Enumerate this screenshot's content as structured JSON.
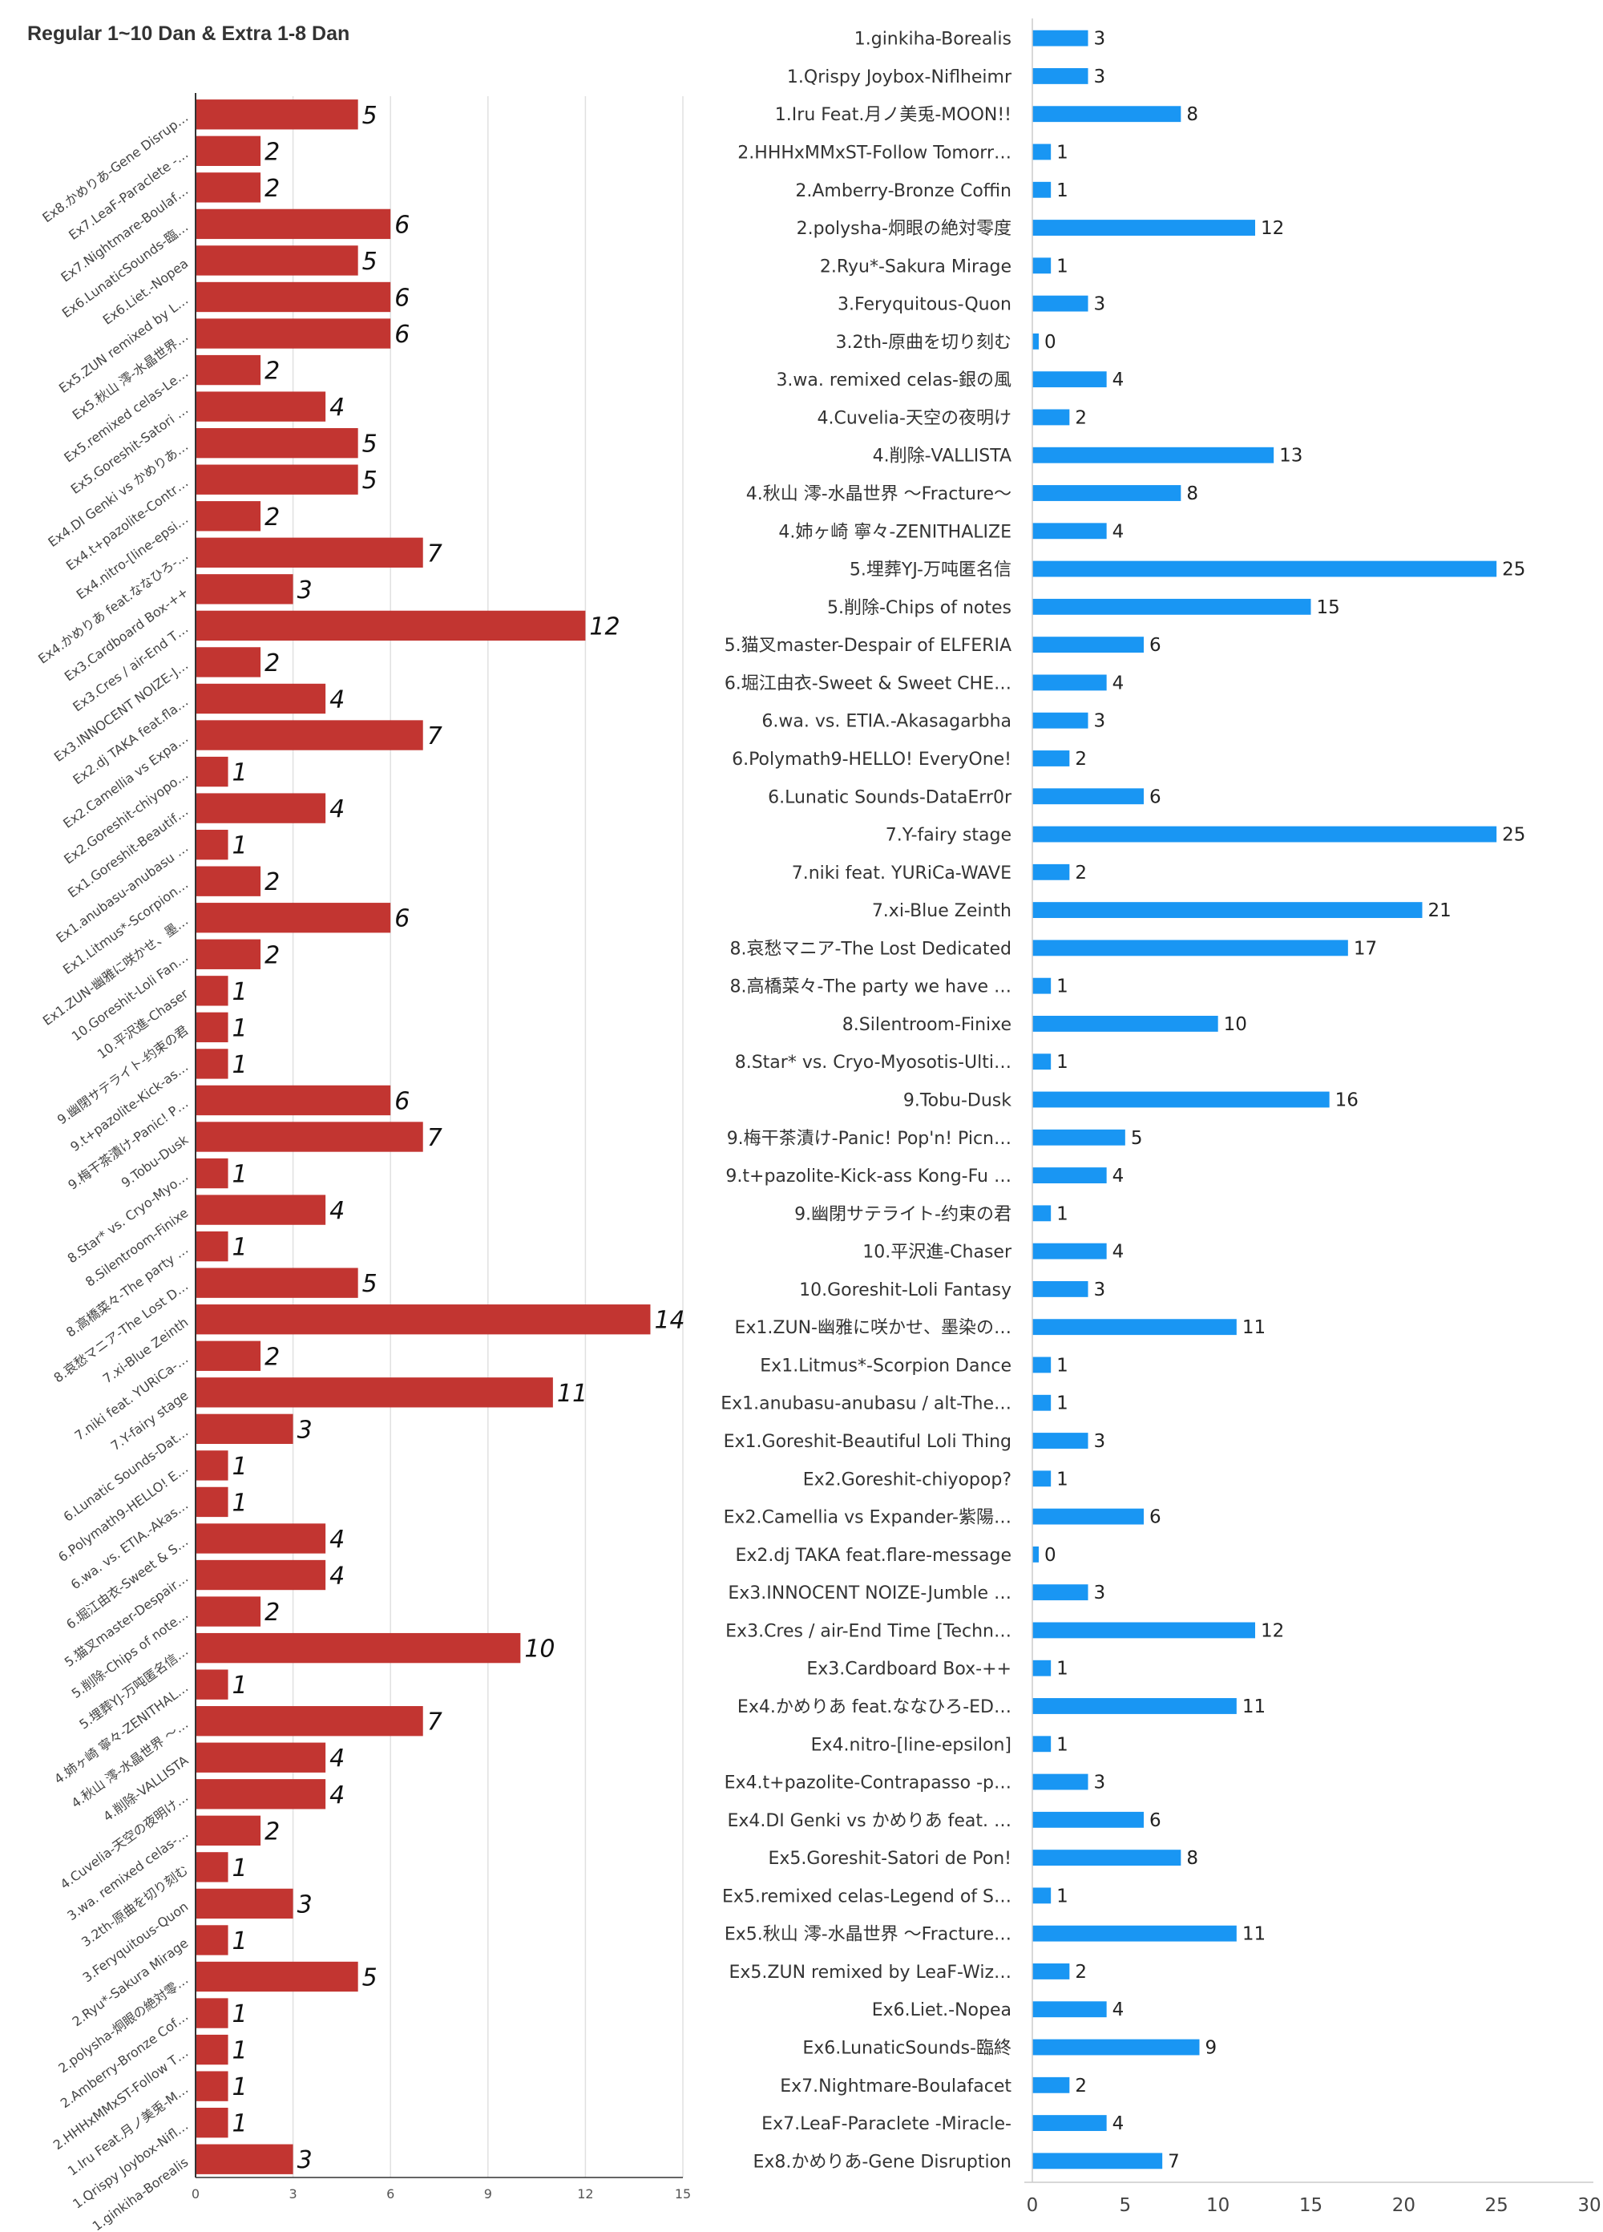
{
  "title": "Regular 1~10 Dan & Extra 1-8 Dan",
  "colors": {
    "left_bar": "#C23531",
    "right_bar": "#1996F3",
    "grid": "#E0E0E0",
    "axis": "#333333"
  },
  "chart_data": [
    {
      "type": "bar",
      "orientation": "horizontal",
      "position": "left",
      "xlim": [
        0,
        15
      ],
      "ticks": [
        0,
        3,
        6,
        9,
        12,
        15
      ],
      "grid": true,
      "categories": [
        "Ex8.かめりあ-Gene Disrup…",
        "Ex7.LeaF-Paraclete -…",
        "Ex7.Nightmare-Boulaf…",
        "Ex6.LunaticSounds-臨…",
        "Ex6.Liet.-Nopea",
        "Ex5.ZUN remixed by L…",
        "Ex5.秋山 澪-水晶世界…",
        "Ex5.remixed celas-Le…",
        "Ex5.Goreshit-Satori …",
        "Ex4.DI Genki vs かめりあ…",
        "Ex4.t+pazolite-Contr…",
        "Ex4.nitro-[line-epsi…",
        "Ex4.かめりあ feat.ななひろ-…",
        "Ex3.Cardboard Box-++",
        "Ex3.Cres / air-End T…",
        "Ex3.INNOCENT NOIZE-J…",
        "Ex2.dj TAKA feat.fla…",
        "Ex2.Camellia vs Expa…",
        "Ex2.Goreshit-chiyopo…",
        "Ex1.Goreshit-Beautif…",
        "Ex1.anubasu-anubasu …",
        "Ex1.Litmus*-Scorpion…",
        "Ex1.ZUN-幽雅に咲かせ、墨…",
        "10.Goreshit-Loli Fan…",
        "10.平沢進-Chaser",
        "9.幽閉サテライト-约束の君",
        "9.t+pazolite-Kick-as…",
        "9.梅干茶漬け-Panic! P…",
        "9.Tobu-Dusk",
        "8.Star* vs. Cryo-Myo…",
        "8.Silentroom-Finixe",
        "8.高橋菜々-The party …",
        "8.哀愁マニア-The Lost D…",
        "7.xi-Blue Zeinth",
        "7.niki feat. YURiCa-…",
        "7.Y-fairy stage",
        "6.Lunatic Sounds-Dat…",
        "6.Polymath9-HELLO! E…",
        "6.wa. vs. ETIA.-Akas…",
        "6.堀江由衣-Sweet & S…",
        "5.猫叉master-Despair…",
        "5.削除-Chips of note…",
        "5.埋葬YJ-万吨匿名信…",
        "4.姉ヶ崎 寧々-ZENITHAL…",
        "4.秋山 澪-水晶世界 ～…",
        "4.削除-VALLISTA",
        "4.Cuvelia-天空の夜明け…",
        "3.wa. remixed celas-…",
        "3.2th-原曲を切り刻む",
        "3.Feryquitous-Quon",
        "2.Ryu*-Sakura Mirage",
        "2.polysha-炯眼の絶対零…",
        "2.Amberry-Bronze Cof…",
        "2.HHHxMMxST-Follow T…",
        "1.Iru Feat.月ノ美兎-M…",
        "1.Qrispy Joybox-Nifl…",
        "1.ginkiha-Borealis"
      ],
      "values": [
        5,
        2,
        2,
        6,
        5,
        6,
        6,
        2,
        4,
        5,
        5,
        2,
        7,
        3,
        12,
        2,
        4,
        7,
        1,
        4,
        1,
        2,
        6,
        2,
        1,
        1,
        1,
        6,
        7,
        1,
        4,
        1,
        5,
        14,
        2,
        11,
        3,
        1,
        1,
        4,
        4,
        2,
        10,
        1,
        7,
        4,
        4,
        2,
        1,
        3,
        1,
        5,
        1,
        1,
        1,
        1,
        3
      ]
    },
    {
      "type": "bar",
      "orientation": "horizontal",
      "position": "right",
      "xlim": [
        0,
        30
      ],
      "ticks": [
        0,
        5,
        10,
        15,
        20,
        25,
        30
      ],
      "grid": false,
      "categories": [
        "1.ginkiha-Borealis",
        "1.Qrispy Joybox-Niflheimr",
        "1.Iru Feat.月ノ美兎-MOON!!",
        "2.HHHxMMxST-Follow Tomorr…",
        "2.Amberry-Bronze Coffin",
        "2.polysha-炯眼の絶対零度",
        "2.Ryu*-Sakura Mirage",
        "3.Feryquitous-Quon",
        "3.2th-原曲を切り刻む",
        "3.wa. remixed celas-銀の風",
        "4.Cuvelia-天空の夜明け",
        "4.削除-VALLISTA",
        "4.秋山 澪-水晶世界 ～Fracture～",
        "4.姉ヶ崎 寧々-ZENITHALIZE",
        "5.埋葬YJ-万吨匿名信",
        "5.削除-Chips of notes",
        "5.猫叉master-Despair of ELFERIA",
        "6.堀江由衣-Sweet & Sweet CHE…",
        "6.wa. vs. ETIA.-Akasagarbha",
        "6.Polymath9-HELLO! EveryOne!",
        "6.Lunatic Sounds-DataErr0r",
        "7.Y-fairy stage",
        "7.niki feat. YURiCa-WAVE",
        "7.xi-Blue Zeinth",
        "8.哀愁マニア-The Lost Dedicated",
        "8.高橋菜々-The party we have …",
        "8.Silentroom-Finixe",
        "8.Star* vs. Cryo-Myosotis-Ulti…",
        "9.Tobu-Dusk",
        "9.梅干茶漬け-Panic! Pop'n! Picn…",
        "9.t+pazolite-Kick-ass Kong-Fu …",
        "9.幽閉サテライト-约束の君",
        "10.平沢進-Chaser",
        "10.Goreshit-Loli Fantasy",
        "Ex1.ZUN-幽雅に咲かせ、墨染の…",
        "Ex1.Litmus*-Scorpion Dance",
        "Ex1.anubasu-anubasu / alt-The…",
        "Ex1.Goreshit-Beautiful Loli Thing",
        "Ex2.Goreshit-chiyopop?",
        "Ex2.Camellia vs Expander-紫陽…",
        "Ex2.dj TAKA feat.flare-message",
        "Ex3.INNOCENT NOIZE-Jumble …",
        "Ex3.Cres / air-End Time [Techn…",
        "Ex3.Cardboard Box-++",
        "Ex4.かめりあ feat.ななひろ-ED…",
        "Ex4.nitro-[line-epsilon]",
        "Ex4.t+pazolite-Contrapasso -p…",
        "Ex4.DI Genki vs かめりあ feat. …",
        "Ex5.Goreshit-Satori de Pon!",
        "Ex5.remixed celas-Legend of S…",
        "Ex5.秋山 澪-水晶世界 ～Fracture…",
        "Ex5.ZUN remixed by LeaF-Wiz…",
        "Ex6.Liet.-Nopea",
        "Ex6.LunaticSounds-臨終",
        "Ex7.Nightmare-Boulafacet",
        "Ex7.LeaF-Paraclete -Miracle-",
        "Ex8.かめりあ-Gene Disruption"
      ],
      "values": [
        3,
        3,
        8,
        1,
        1,
        12,
        1,
        3,
        0,
        4,
        2,
        13,
        8,
        4,
        25,
        15,
        6,
        4,
        3,
        2,
        6,
        25,
        2,
        21,
        17,
        1,
        10,
        1,
        16,
        5,
        4,
        1,
        4,
        3,
        11,
        1,
        1,
        3,
        1,
        6,
        0,
        3,
        12,
        1,
        11,
        1,
        3,
        6,
        8,
        1,
        11,
        2,
        4,
        9,
        2,
        4,
        7
      ]
    }
  ]
}
